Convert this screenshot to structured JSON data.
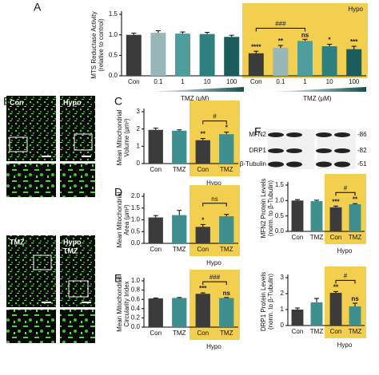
{
  "chart_data": [
    {
      "type": "bar",
      "y_label": [
        "MTS Reductase Activity",
        "(relative to control)"
      ],
      "x_label": "TMZ (μM)",
      "group_label": "Hypo",
      "categories": [
        "Con",
        "0.1",
        "1",
        "10",
        "100",
        "Con",
        "0.1",
        "1",
        "10",
        "100"
      ],
      "values": [
        1.0,
        1.05,
        1.03,
        1.02,
        0.95,
        0.55,
        0.68,
        0.85,
        0.72,
        0.65
      ],
      "errors": [
        0.04,
        0.05,
        0.04,
        0.04,
        0.04,
        0.05,
        0.06,
        0.04,
        0.05,
        0.07
      ],
      "colors": [
        "#3b3b3b",
        "#9ab7b7",
        "#4f9d9d",
        "#2e7f7f",
        "#1d5c5c",
        "#3b3b3b",
        "#9ab7b7",
        "#4f9d9d",
        "#2e7f7f",
        "#1d5c5c"
      ],
      "significance": [
        null,
        null,
        null,
        null,
        null,
        "****",
        "**",
        "ns",
        "*",
        "***"
      ],
      "comparisons": [
        "###"
      ],
      "ylim": [
        0,
        1.5
      ],
      "yticks": [
        {
          "value": 0,
          "label": "0.0"
        },
        {
          "value": 0.5,
          "label": "0.5"
        },
        {
          "value": 1,
          "label": "1.0"
        },
        {
          "value": 1.5,
          "label": "1.5"
        }
      ]
    },
    {
      "type": "bar",
      "y_label": [
        "Mean Mitochondrial",
        "Volume (μm³)"
      ],
      "group_label": "Hypo",
      "categories": [
        "Con",
        "TMZ",
        "Con",
        "TMZ"
      ],
      "values": [
        1.95,
        1.9,
        1.35,
        1.7
      ],
      "errors": [
        0.1,
        0.05,
        0.1,
        0.12
      ],
      "colors": [
        "#3b3b3b",
        "#3f8f8f",
        "#3b3b3b",
        "#3f8f8f"
      ],
      "significance": [
        null,
        null,
        "**",
        "*"
      ],
      "comparisons": [
        "#"
      ],
      "ylim": [
        0,
        3
      ],
      "yticks": [
        0,
        1,
        2,
        3
      ]
    },
    {
      "type": "bar",
      "y_label": [
        "Mean Mitochondrial",
        "Area (μm²)"
      ],
      "group_label": "Hypo",
      "categories": [
        "Con",
        "TMZ",
        "Con",
        "TMZ"
      ],
      "values": [
        1.1,
        1.2,
        0.7,
        1.15
      ],
      "errors": [
        0.08,
        0.2,
        0.1,
        0.08
      ],
      "colors": [
        "#3b3b3b",
        "#3f8f8f",
        "#3b3b3b",
        "#3f8f8f"
      ],
      "significance": [
        null,
        null,
        "*",
        null
      ],
      "comparisons": [
        "ns"
      ],
      "ylim": [
        0,
        2
      ],
      "yticks": [
        {
          "value": 0,
          "label": "0.0"
        },
        {
          "value": 0.5,
          "label": "0.5"
        },
        {
          "value": 1,
          "label": "1.0"
        },
        {
          "value": 1.5,
          "label": "1.5"
        },
        {
          "value": 2,
          "label": "2.0"
        }
      ]
    },
    {
      "type": "bar",
      "y_label": [
        "Mean Mitochondrial",
        "Circularity Index"
      ],
      "group_label": "Hypo",
      "categories": [
        "Con",
        "TMZ",
        "Con",
        "TMZ"
      ],
      "values": [
        0.62,
        0.63,
        0.72,
        0.63
      ],
      "errors": [
        0.01,
        0.01,
        0.02,
        0.01
      ],
      "colors": [
        "#3b3b3b",
        "#3f8f8f",
        "#3b3b3b",
        "#3f8f8f"
      ],
      "significance": [
        null,
        null,
        "***",
        "ns"
      ],
      "comparisons": [
        "###"
      ],
      "ylim": [
        0,
        1
      ],
      "yticks": [
        {
          "value": 0,
          "label": "0.0"
        },
        {
          "value": 0.2,
          "label": "0.2"
        },
        {
          "value": 0.4,
          "label": "0.4"
        },
        {
          "value": 0.6,
          "label": "0.6"
        },
        {
          "value": 0.8,
          "label": "0.8"
        },
        {
          "value": 1,
          "label": "1.0"
        }
      ]
    },
    {
      "type": "bar",
      "y_label": [
        "MFN2 Protein Levels",
        "(norm. to β-Tubulin)"
      ],
      "group_label": "Hypo",
      "categories": [
        "Con",
        "TMZ",
        "Con",
        "TMZ"
      ],
      "values": [
        1.0,
        0.98,
        0.78,
        0.88
      ],
      "errors": [
        0.03,
        0.03,
        0.04,
        0.02
      ],
      "colors": [
        "#3b3b3b",
        "#3f8f8f",
        "#3b3b3b",
        "#3f8f8f"
      ],
      "significance": [
        null,
        null,
        "***",
        "**"
      ],
      "comparisons": [
        "#"
      ],
      "ylim": [
        0,
        1.5
      ],
      "yticks": [
        {
          "value": 0,
          "label": "0.0"
        },
        {
          "value": 0.5,
          "label": "0.5"
        },
        {
          "value": 1,
          "label": "1.0"
        },
        {
          "value": 1.5,
          "label": "1.5"
        }
      ]
    },
    {
      "type": "bar",
      "y_label": [
        "DRP1 Protein Levels",
        "(norm. to β-Tubulin)"
      ],
      "group_label": "Hypo",
      "categories": [
        "Con",
        "TMZ",
        "Con",
        "TMZ"
      ],
      "values": [
        1.0,
        1.45,
        2.05,
        1.2
      ],
      "errors": [
        0.1,
        0.25,
        0.08,
        0.2
      ],
      "colors": [
        "#3b3b3b",
        "#3f8f8f",
        "#3b3b3b",
        "#3f8f8f"
      ],
      "significance": [
        null,
        null,
        "**",
        "ns"
      ],
      "comparisons": [
        "#"
      ],
      "ylim": [
        0,
        3
      ],
      "yticks": [
        0,
        1,
        2,
        3
      ]
    }
  ],
  "figure": {
    "panel_letters": [
      "A",
      "B",
      "C",
      "D",
      "E",
      "F"
    ],
    "micrographs": [
      "Con",
      "Hypo",
      "TMZ",
      [
        "Hypo",
        "TMZ"
      ]
    ],
    "blot": {
      "proteins": [
        "MFN2",
        "DRP1",
        "β-Tubulin"
      ],
      "markers": [
        "-86",
        "-82",
        "-51"
      ]
    }
  }
}
